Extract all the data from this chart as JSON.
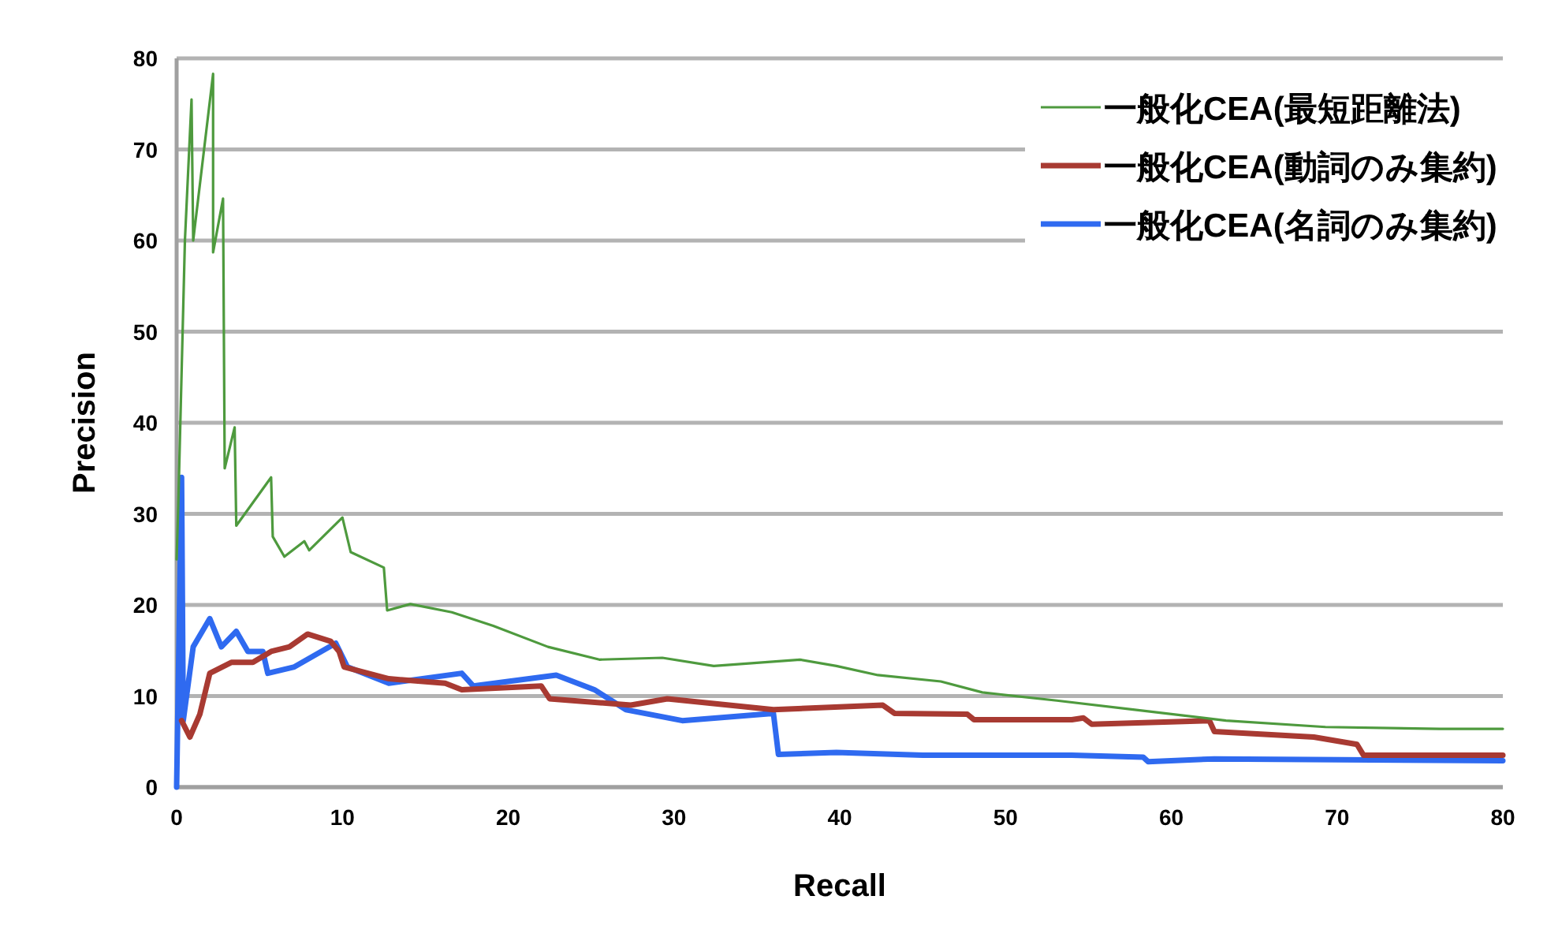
{
  "chart_data": {
    "type": "line",
    "xlabel": "Recall",
    "ylabel": "Precision",
    "xlim": [
      0,
      80
    ],
    "ylim": [
      0,
      80
    ],
    "xticks": [
      0,
      10,
      20,
      30,
      40,
      50,
      60,
      70,
      80
    ],
    "yticks": [
      0,
      10,
      20,
      30,
      40,
      50,
      60,
      70,
      80
    ],
    "grid": "y",
    "legend": "top right",
    "line_style": "solid",
    "series": [
      {
        "name": "一般化CEA(最短距離法)",
        "color": "#4e9a3e",
        "x": [
          0,
          0.1,
          0.5,
          0.9,
          1.0,
          2.2,
          2.2,
          2.8,
          2.9,
          3.5,
          3.6,
          5.7,
          5.8,
          6.5,
          7.7,
          8.0,
          10,
          10.5,
          12.5,
          12.7,
          14.1,
          16.6,
          19.1,
          22.4,
          25.5,
          29.3,
          32.4,
          37.6,
          39.8,
          42.3,
          46.1,
          48.6,
          53.1,
          57.8,
          63.3,
          69.3,
          76.2,
          80
        ],
        "values": [
          25,
          31,
          60,
          75.5,
          60,
          78.3,
          58.7,
          64.6,
          35,
          39.5,
          28.7,
          34,
          27.5,
          25.3,
          27,
          26,
          29.6,
          25.8,
          24.1,
          19.4,
          20.1,
          19.2,
          17.7,
          15.4,
          14,
          14.2,
          13.3,
          14,
          13.3,
          12.3,
          11.6,
          10.4,
          9.5,
          8.5,
          7.3,
          6.6,
          6.4,
          6.4
        ]
      },
      {
        "name": "一般化CEA(動詞のみ集約)",
        "color": "#a83a32",
        "x": [
          0.3,
          0.8,
          1.4,
          2,
          3.3,
          4.6,
          5.7,
          6.8,
          7.9,
          9.3,
          9.8,
          10.1,
          12.8,
          16.2,
          17.2,
          22,
          22.5,
          27.4,
          29.6,
          36,
          42.6,
          43.3,
          47.7,
          48.1,
          54,
          54.7,
          55.2,
          62.3,
          62.6,
          68.6,
          71.2,
          71.6,
          80
        ],
        "values": [
          7.3,
          5.5,
          8,
          12.5,
          13.7,
          13.7,
          14.9,
          15.4,
          16.8,
          16,
          14.9,
          13.2,
          11.9,
          11.4,
          10.7,
          11.1,
          9.7,
          9,
          9.7,
          8.5,
          9,
          8.1,
          8,
          7.4,
          7.4,
          7.6,
          6.9,
          7.3,
          6.1,
          5.5,
          4.7,
          3.5,
          3.5
        ]
      },
      {
        "name": "一般化CEA(名詞のみ集約)",
        "color": "#2f6af0",
        "x": [
          0,
          0.3,
          0.4,
          1.0,
          2,
          2.7,
          3.6,
          4.3,
          5.2,
          5.5,
          7.1,
          9.6,
          10.3,
          12.8,
          17.2,
          17.9,
          22.9,
          25.2,
          27.1,
          30.5,
          36,
          36.3,
          39.8,
          45,
          54,
          58.3,
          58.6,
          62.6,
          80
        ],
        "values": [
          0,
          34,
          7.3,
          15.4,
          18.5,
          15.4,
          17.1,
          14.9,
          14.9,
          12.5,
          13.2,
          15.8,
          13.2,
          11.4,
          12.5,
          11.1,
          12.3,
          10.7,
          8.5,
          7.3,
          8.1,
          3.6,
          3.8,
          3.5,
          3.5,
          3.3,
          2.8,
          3.1,
          2.9
        ]
      }
    ]
  }
}
